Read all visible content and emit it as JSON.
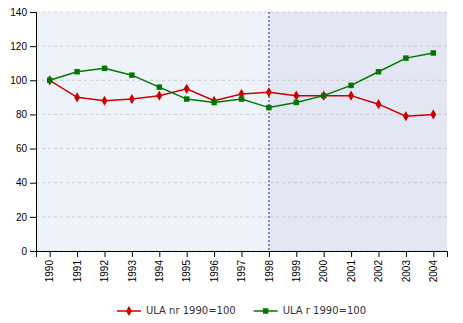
{
  "chart_data": {
    "type": "line",
    "x": [
      1990,
      1991,
      1992,
      1993,
      1994,
      1995,
      1996,
      1997,
      1998,
      1999,
      2000,
      2001,
      2002,
      2003,
      2004
    ],
    "series": [
      {
        "name": "ULA nr 1990=100",
        "color": "#cc0000",
        "marker": "diamond",
        "values": [
          100,
          90,
          88,
          89,
          91,
          95,
          88,
          92,
          93,
          91,
          91,
          91,
          86,
          79,
          80
        ]
      },
      {
        "name": "ULA r 1990=100",
        "color": "#007700",
        "marker": "square",
        "values": [
          100,
          105,
          107,
          103,
          96,
          89,
          87,
          89,
          84,
          87,
          91,
          97,
          105,
          113,
          116
        ]
      }
    ],
    "xlim": [
      1989.5,
      2004.5
    ],
    "xticks": [
      1990,
      1991,
      1992,
      1993,
      1994,
      1995,
      1996,
      1997,
      1998,
      1999,
      2000,
      2001,
      2002,
      2003,
      2004
    ],
    "ylim": [
      0,
      140
    ],
    "yticks": [
      0,
      20,
      40,
      60,
      80,
      100,
      120,
      140
    ],
    "vline_x": 1998,
    "grid": true,
    "legend": "bottom"
  }
}
